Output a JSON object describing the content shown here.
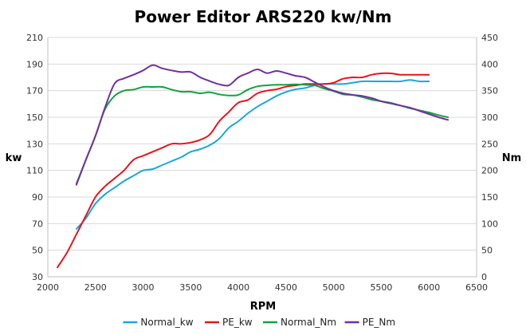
{
  "chart_data": {
    "type": "line",
    "title": "Power Editor ARS220 kw/Nm",
    "xlabel": "RPM",
    "ylabel": "kw",
    "y2label": "Nm",
    "xlim": [
      2000,
      6500
    ],
    "xticks": [
      2000,
      2500,
      3000,
      3500,
      4000,
      4500,
      5000,
      5500,
      6000,
      6500
    ],
    "ylim": [
      30,
      210
    ],
    "yticks": [
      30,
      50,
      70,
      90,
      110,
      130,
      150,
      170,
      190,
      210
    ],
    "y2lim": [
      0,
      450
    ],
    "y2ticks": [
      0,
      50,
      100,
      150,
      200,
      250,
      300,
      350,
      400,
      450
    ],
    "grid": true,
    "legend": "bottom",
    "series": [
      {
        "name": "Normal_kw",
        "color": "#1aa7e0",
        "axis": "left",
        "x": [
          2300,
          2400,
          2500,
          2600,
          2700,
          2800,
          2900,
          3000,
          3100,
          3200,
          3300,
          3400,
          3500,
          3600,
          3700,
          3800,
          3900,
          4000,
          4100,
          4200,
          4300,
          4400,
          4500,
          4600,
          4700,
          4800,
          4900,
          5000,
          5100,
          5200,
          5300,
          5400,
          5500,
          5600,
          5700,
          5800,
          5900,
          6000
        ],
        "values": [
          66,
          74,
          85,
          92,
          97,
          102,
          106,
          110,
          111,
          114,
          117,
          120,
          124,
          126,
          129,
          134,
          142,
          147,
          153,
          158,
          162,
          166,
          169,
          171,
          172,
          174,
          175,
          175,
          175,
          176,
          177,
          177,
          177,
          177,
          177,
          178,
          177,
          177
        ]
      },
      {
        "name": "PE_kw",
        "color": "#e8141b",
        "axis": "left",
        "x": [
          2100,
          2200,
          2300,
          2400,
          2500,
          2600,
          2700,
          2800,
          2900,
          3000,
          3100,
          3200,
          3300,
          3400,
          3500,
          3600,
          3700,
          3800,
          3900,
          4000,
          4100,
          4200,
          4300,
          4400,
          4500,
          4600,
          4700,
          4800,
          4900,
          5000,
          5100,
          5200,
          5300,
          5400,
          5500,
          5600,
          5700,
          5800,
          5900,
          6000
        ],
        "values": [
          37,
          48,
          62,
          76,
          90,
          98,
          104,
          110,
          118,
          121,
          124,
          127,
          130,
          130,
          131,
          133,
          137,
          147,
          154,
          161,
          163,
          168,
          170,
          171,
          173,
          174,
          175,
          175,
          175,
          176,
          179,
          180,
          180,
          182,
          183,
          183,
          182,
          182,
          182,
          182
        ]
      },
      {
        "name": "Normal_Nm",
        "color": "#10a33e",
        "axis": "right",
        "x": [
          2300,
          2400,
          2500,
          2600,
          2700,
          2800,
          2900,
          3000,
          3100,
          3200,
          3300,
          3400,
          3500,
          3600,
          3700,
          3800,
          3900,
          4000,
          4100,
          4200,
          4300,
          4400,
          4500,
          4600,
          4700,
          4800,
          4900,
          5000,
          5100,
          5200,
          5300,
          5400,
          5500,
          5600,
          5700,
          5800,
          5900,
          6000,
          6100,
          6200
        ],
        "values": [
          175,
          220,
          265,
          315,
          340,
          350,
          352,
          357,
          357,
          357,
          352,
          348,
          348,
          345,
          347,
          343,
          341,
          342,
          352,
          358,
          360,
          361,
          361,
          362,
          361,
          360,
          354,
          349,
          343,
          342,
          338,
          333,
          330,
          327,
          322,
          317,
          313,
          309,
          304,
          300
        ]
      },
      {
        "name": "PE_Nm",
        "color": "#7030a0",
        "axis": "right",
        "x": [
          2300,
          2400,
          2500,
          2600,
          2700,
          2800,
          2900,
          3000,
          3100,
          3200,
          3300,
          3400,
          3500,
          3600,
          3700,
          3800,
          3900,
          4000,
          4100,
          4200,
          4300,
          4400,
          4500,
          4600,
          4700,
          4800,
          4900,
          5000,
          5100,
          5200,
          5300,
          5400,
          5500,
          5600,
          5700,
          5800,
          5900,
          6000,
          6100,
          6200
        ],
        "values": [
          173,
          220,
          265,
          318,
          363,
          373,
          380,
          388,
          398,
          392,
          388,
          385,
          385,
          375,
          368,
          362,
          360,
          375,
          383,
          390,
          383,
          387,
          383,
          378,
          375,
          366,
          357,
          350,
          345,
          342,
          340,
          336,
          330,
          326,
          322,
          318,
          312,
          306,
          300,
          295
        ]
      }
    ]
  }
}
